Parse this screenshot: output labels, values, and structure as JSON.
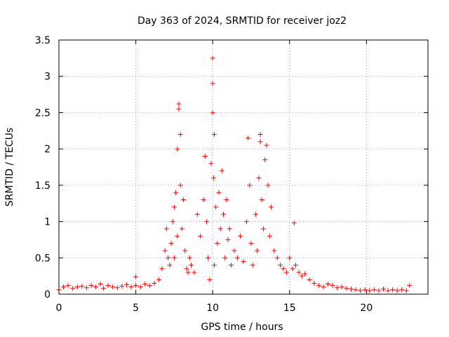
{
  "chart_data": {
    "type": "scatter",
    "title": "Day 363 of 2024, SRMTID for receiver joz2",
    "xlabel": "GPS time / hours",
    "ylabel": "SRMTID / TECUs",
    "xlim": [
      0,
      24
    ],
    "ylim": [
      0,
      3.5
    ],
    "xticks": [
      0,
      5,
      10,
      15,
      20
    ],
    "xtick_labels": [
      "0",
      "5",
      "10",
      "15",
      "20"
    ],
    "yticks": [
      0,
      0.5,
      1,
      1.5,
      2,
      2.5,
      3,
      3.5
    ],
    "ytick_labels": [
      "0",
      "0.5",
      "1",
      "1.5",
      "2",
      "2.5",
      "3",
      "3.5"
    ],
    "grid": true,
    "marker": "+",
    "color": "#ff0000",
    "series": [
      {
        "name": "SRMTID",
        "x": [
          0.0,
          0.3,
          0.6,
          0.9,
          1.2,
          1.5,
          1.8,
          2.1,
          2.4,
          2.7,
          2.9,
          3.2,
          3.5,
          3.8,
          4.1,
          4.4,
          4.7,
          5.0,
          5.0,
          5.3,
          5.6,
          5.9,
          6.2,
          6.5,
          6.7,
          6.9,
          7.0,
          7.1,
          7.2,
          7.3,
          7.4,
          7.5,
          7.5,
          7.6,
          7.7,
          7.7,
          7.8,
          7.8,
          7.9,
          7.9,
          8.0,
          8.1,
          8.2,
          8.3,
          8.4,
          8.5,
          8.6,
          8.8,
          9.0,
          9.2,
          9.4,
          9.5,
          9.6,
          9.7,
          9.8,
          9.9,
          10.0,
          10.0,
          10.0,
          10.05,
          10.1,
          10.1,
          10.2,
          10.3,
          10.4,
          10.5,
          10.6,
          10.7,
          10.8,
          10.9,
          11.0,
          11.1,
          11.2,
          11.4,
          11.6,
          11.8,
          12.0,
          12.2,
          12.3,
          12.4,
          12.5,
          12.6,
          12.8,
          12.9,
          13.0,
          13.1,
          13.1,
          13.2,
          13.3,
          13.4,
          13.5,
          13.6,
          13.7,
          13.8,
          14.0,
          14.2,
          14.4,
          14.6,
          14.8,
          15.0,
          15.2,
          15.3,
          15.4,
          15.6,
          15.8,
          16.0,
          16.3,
          16.6,
          16.9,
          17.2,
          17.5,
          17.8,
          18.1,
          18.4,
          18.7,
          19.0,
          19.3,
          19.6,
          19.9,
          20.2,
          20.5,
          20.8,
          21.1,
          21.4,
          21.7,
          22.0,
          22.3,
          22.6,
          22.8
        ],
        "y": [
          0.06,
          0.1,
          0.12,
          0.08,
          0.1,
          0.11,
          0.09,
          0.12,
          0.1,
          0.14,
          0.08,
          0.12,
          0.1,
          0.09,
          0.11,
          0.13,
          0.1,
          0.24,
          0.12,
          0.1,
          0.14,
          0.12,
          0.15,
          0.2,
          0.35,
          0.6,
          0.9,
          0.5,
          0.4,
          0.7,
          1.0,
          1.2,
          0.5,
          1.4,
          0.8,
          2.0,
          2.55,
          2.62,
          1.5,
          2.2,
          0.9,
          1.3,
          0.6,
          0.35,
          0.3,
          0.5,
          0.4,
          0.3,
          1.1,
          0.8,
          1.3,
          1.9,
          1.0,
          0.5,
          0.2,
          1.8,
          3.25,
          2.9,
          2.5,
          1.6,
          2.2,
          0.4,
          1.2,
          0.7,
          1.4,
          0.9,
          1.7,
          1.1,
          0.5,
          1.3,
          0.75,
          0.9,
          0.4,
          0.6,
          0.5,
          0.8,
          0.45,
          1.0,
          2.15,
          1.5,
          0.7,
          0.4,
          1.1,
          0.6,
          1.6,
          2.2,
          2.1,
          1.3,
          0.9,
          1.85,
          2.05,
          1.5,
          0.8,
          1.2,
          0.6,
          0.5,
          0.4,
          0.35,
          0.3,
          0.5,
          0.35,
          0.98,
          0.4,
          0.3,
          0.25,
          0.28,
          0.2,
          0.15,
          0.12,
          0.1,
          0.14,
          0.12,
          0.09,
          0.1,
          0.08,
          0.07,
          0.06,
          0.05,
          0.06,
          0.05,
          0.06,
          0.05,
          0.07,
          0.05,
          0.06,
          0.05,
          0.06,
          0.05,
          0.12
        ]
      }
    ]
  }
}
